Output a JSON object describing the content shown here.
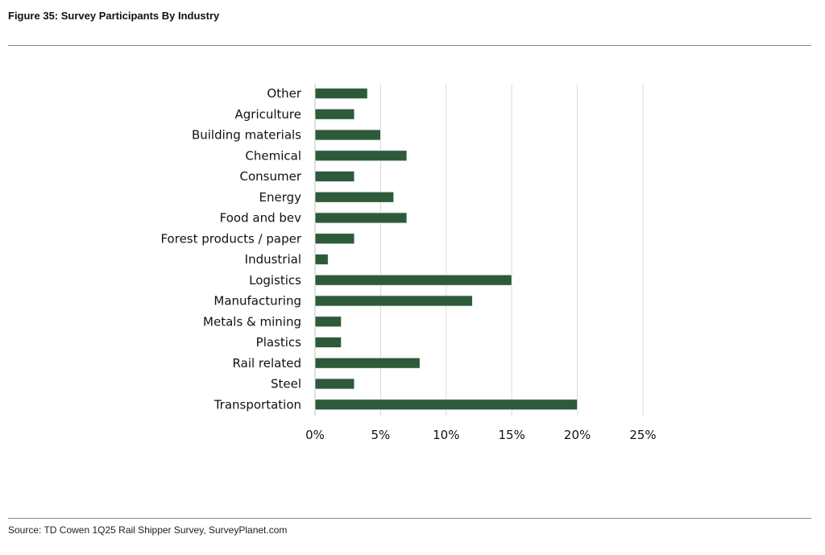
{
  "figure_title": "Figure 35: Survey Participants By Industry",
  "source": "Source: TD Cowen 1Q25 Rail Shipper Survey, SurveyPlanet.com",
  "colors": {
    "bar": "#2d5a3a",
    "grid": "#d9d9d9"
  },
  "chart_data": {
    "type": "bar",
    "orientation": "horizontal",
    "title": "Survey Participants By Industry",
    "categories": [
      "Other",
      "Agriculture",
      "Building materials",
      "Chemical",
      "Consumer",
      "Energy",
      "Food and bev",
      "Forest products / paper",
      "Industrial",
      "Logistics",
      "Manufacturing",
      "Metals & mining",
      "Plastics",
      "Rail related",
      "Steel",
      "Transportation"
    ],
    "values": [
      4,
      3,
      5,
      7,
      3,
      6,
      7,
      3,
      1,
      15,
      12,
      2,
      2,
      8,
      3,
      20
    ],
    "unit": "%",
    "xlim": [
      0,
      25
    ],
    "xticks": [
      "0%",
      "5%",
      "10%",
      "15%",
      "20%",
      "25%"
    ],
    "grid": true,
    "legend": "none"
  }
}
